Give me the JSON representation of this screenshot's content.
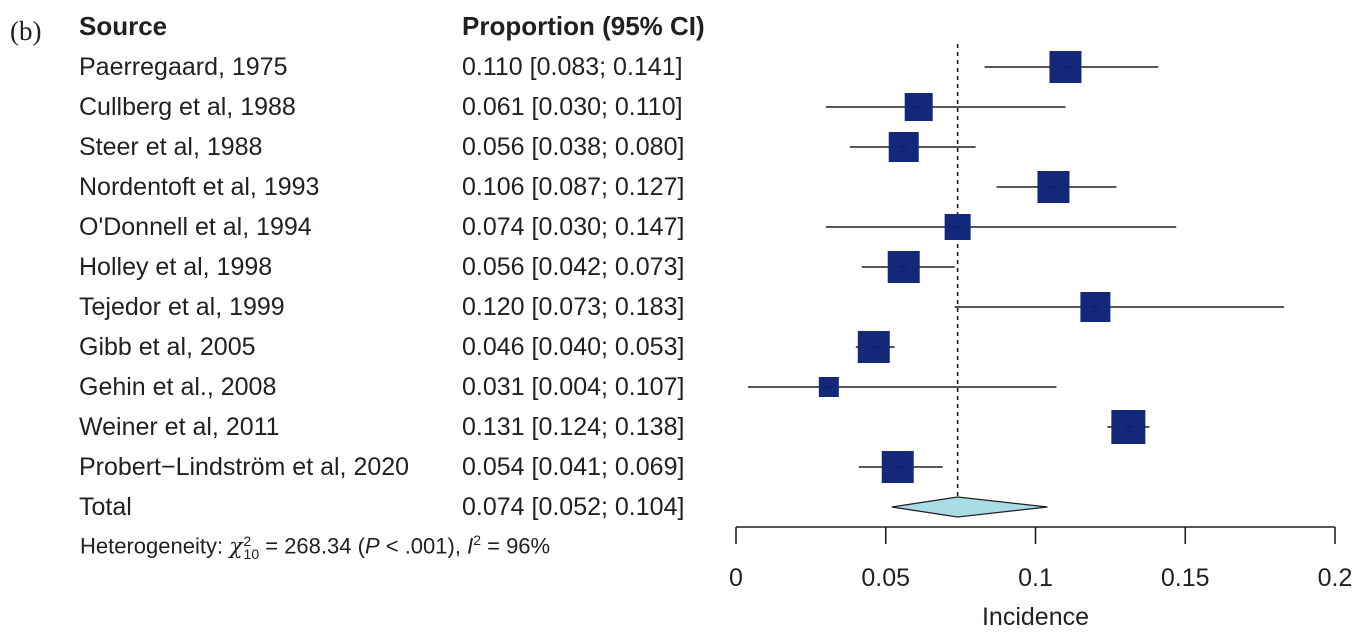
{
  "panel_label": "(b)",
  "headers": {
    "source": "Source",
    "proportion": "Proportion (95% CI)"
  },
  "chart_data": {
    "type": "forest",
    "xlabel": "Incidence",
    "xlim": [
      0,
      0.2
    ],
    "xticks": [
      0,
      0.05,
      0.1,
      0.15,
      0.2
    ],
    "xtick_labels": [
      "0",
      "0.05",
      "0.1",
      "0.15",
      "0.2"
    ],
    "reference_line": 0.074,
    "box_color": "#14287a",
    "diamond_color": "#a8dde8",
    "studies": [
      {
        "source": "Paerregaard, 1975",
        "est": 0.11,
        "lo": 0.083,
        "hi": 0.141,
        "text": "0.110 [0.083; 0.141]",
        "box": 32
      },
      {
        "source": "Cullberg et al, 1988",
        "est": 0.061,
        "lo": 0.03,
        "hi": 0.11,
        "text": "0.061 [0.030; 0.110]",
        "box": 28
      },
      {
        "source": "Steer et al, 1988",
        "est": 0.056,
        "lo": 0.038,
        "hi": 0.08,
        "text": "0.056 [0.038; 0.080]",
        "box": 30
      },
      {
        "source": "Nordentoft et al, 1993",
        "est": 0.106,
        "lo": 0.087,
        "hi": 0.127,
        "text": "0.106 [0.087; 0.127]",
        "box": 32
      },
      {
        "source": "O'Donnell et al, 1994",
        "est": 0.074,
        "lo": 0.03,
        "hi": 0.147,
        "text": "0.074 [0.030; 0.147]",
        "box": 26
      },
      {
        "source": "Holley et al, 1998",
        "est": 0.056,
        "lo": 0.042,
        "hi": 0.073,
        "text": "0.056 [0.042; 0.073]",
        "box": 32
      },
      {
        "source": "Tejedor et al, 1999",
        "est": 0.12,
        "lo": 0.073,
        "hi": 0.183,
        "text": "0.120 [0.073; 0.183]",
        "box": 30
      },
      {
        "source": "Gibb et al, 2005",
        "est": 0.046,
        "lo": 0.04,
        "hi": 0.053,
        "text": "0.046 [0.040; 0.053]",
        "box": 32
      },
      {
        "source": "Gehin et al., 2008",
        "est": 0.031,
        "lo": 0.004,
        "hi": 0.107,
        "text": "0.031 [0.004; 0.107]",
        "box": 20
      },
      {
        "source": "Weiner et al, 2011",
        "est": 0.131,
        "lo": 0.124,
        "hi": 0.138,
        "text": "0.131 [0.124; 0.138]",
        "box": 34
      },
      {
        "source": "Probert−Lindström et al, 2020",
        "est": 0.054,
        "lo": 0.041,
        "hi": 0.069,
        "text": "0.054 [0.041; 0.069]",
        "box": 32
      }
    ],
    "total": {
      "source": "Total",
      "est": 0.074,
      "lo": 0.052,
      "hi": 0.104,
      "text": "0.074 [0.052; 0.104]"
    }
  },
  "heterogeneity": {
    "prefix": "Heterogeneity: ",
    "chi": "χ",
    "chi_sup": "2",
    "chi_sub": "10",
    "middle": " = 268.34 (",
    "p": "P",
    "p_rest": " < .001), ",
    "i": "I",
    "i_sup": "2",
    "suffix": " = 96%"
  }
}
